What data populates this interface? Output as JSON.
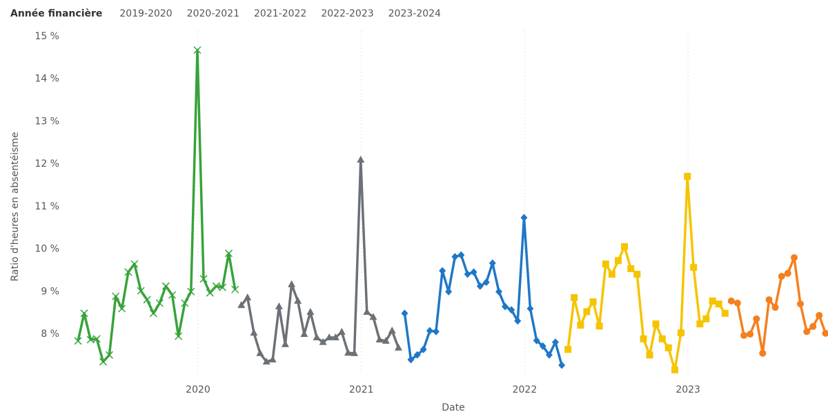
{
  "chart_data": {
    "type": "line",
    "legend_title": "Année financière",
    "x_label": "Date",
    "y_label": "Ratio d'heures en absentéisme",
    "xlim": [
      2019.21,
      2023.857
    ],
    "xticks": [
      2020,
      2021,
      2022,
      2023
    ],
    "ylim": [
      7.11,
      15
    ],
    "yticks": [
      {
        "value": 8,
        "label": "8 %"
      },
      {
        "value": 9,
        "label": "9 %"
      },
      {
        "value": 10,
        "label": "10 %"
      },
      {
        "value": 11,
        "label": "11 %"
      },
      {
        "value": 12,
        "label": "12 %"
      },
      {
        "value": 13,
        "label": "13 %"
      },
      {
        "value": 14,
        "label": "14 %"
      },
      {
        "value": 15,
        "label": "15 %"
      }
    ],
    "grid": "x",
    "legend": "top-left",
    "series": [
      {
        "name": "2019-2020",
        "color": "#37a33a",
        "marker": "x",
        "x": [
          2019.265,
          2019.303,
          2019.342,
          2019.38,
          2019.419,
          2019.457,
          2019.496,
          2019.534,
          2019.573,
          2019.611,
          2019.65,
          2019.688,
          2019.727,
          2019.765,
          2019.803,
          2019.842,
          2019.88,
          2019.919,
          2019.957,
          2019.996,
          2020.034,
          2020.073,
          2020.111,
          2020.15,
          2020.188,
          2020.227
        ],
        "values": [
          7.84,
          8.49,
          7.87,
          7.89,
          7.35,
          7.51,
          8.89,
          8.6,
          9.46,
          9.65,
          9.02,
          8.81,
          8.49,
          8.73,
          9.13,
          8.92,
          7.95,
          8.73,
          9.0,
          14.68,
          9.3,
          8.97,
          9.13,
          9.1,
          9.9,
          9.05
        ]
      },
      {
        "name": "2020-2021",
        "color": "#6b7177",
        "marker": "triangle",
        "x": [
          2020.265,
          2020.303,
          2020.342,
          2020.38,
          2020.419,
          2020.457,
          2020.496,
          2020.534,
          2020.573,
          2020.611,
          2020.65,
          2020.688,
          2020.727,
          2020.765,
          2020.803,
          2020.842,
          2020.88,
          2020.919,
          2020.957,
          2020.996,
          2021.034,
          2021.073,
          2021.111,
          2021.15,
          2021.188,
          2021.227
        ],
        "values": [
          8.68,
          8.86,
          8.03,
          7.55,
          7.35,
          7.4,
          8.65,
          7.76,
          9.17,
          8.78,
          8.0,
          8.52,
          7.92,
          7.81,
          7.92,
          7.92,
          8.05,
          7.56,
          7.55,
          12.1,
          8.52,
          8.4,
          7.87,
          7.84,
          8.08,
          7.68
        ]
      },
      {
        "name": "2021-2022",
        "color": "#1f77c8",
        "marker": "diamond",
        "x": [
          2021.265,
          2021.303,
          2021.342,
          2021.38,
          2021.419,
          2021.457,
          2021.496,
          2021.534,
          2021.573,
          2021.611,
          2021.65,
          2021.688,
          2021.727,
          2021.765,
          2021.803,
          2021.842,
          2021.88,
          2021.919,
          2021.957,
          2021.996,
          2022.034,
          2022.073,
          2022.111,
          2022.15,
          2022.188,
          2022.227
        ],
        "values": [
          8.49,
          7.4,
          7.51,
          7.64,
          8.08,
          8.06,
          9.49,
          9.0,
          9.82,
          9.86,
          9.41,
          9.46,
          9.13,
          9.22,
          9.67,
          9.0,
          8.65,
          8.57,
          8.31,
          10.74,
          8.6,
          7.85,
          7.72,
          7.51,
          7.81,
          7.27
        ]
      },
      {
        "name": "2022-2023",
        "color": "#f5c400",
        "marker": "square",
        "x": [
          2022.265,
          2022.303,
          2022.342,
          2022.38,
          2022.419,
          2022.457,
          2022.496,
          2022.534,
          2022.573,
          2022.611,
          2022.65,
          2022.688,
          2022.727,
          2022.765,
          2022.803,
          2022.842,
          2022.88,
          2022.919,
          2022.957,
          2022.996,
          2023.034,
          2023.073,
          2023.111,
          2023.15,
          2023.188,
          2023.227
        ],
        "values": [
          7.64,
          8.86,
          8.21,
          8.53,
          8.76,
          8.19,
          9.65,
          9.41,
          9.73,
          10.06,
          9.54,
          9.41,
          7.89,
          7.51,
          8.24,
          7.89,
          7.68,
          7.16,
          8.03,
          11.71,
          9.57,
          8.24,
          8.36,
          8.78,
          8.71,
          8.49
        ]
      },
      {
        "name": "2023-2024",
        "color": "#f57f1e",
        "marker": "circle",
        "x": [
          2023.265,
          2023.303,
          2023.342,
          2023.38,
          2023.419,
          2023.457,
          2023.496,
          2023.534,
          2023.573,
          2023.611,
          2023.65,
          2023.688,
          2023.727,
          2023.765,
          2023.803,
          2023.842
        ],
        "values": [
          8.78,
          8.73,
          7.97,
          8.0,
          8.36,
          7.55,
          8.81,
          8.63,
          9.36,
          9.43,
          9.8,
          8.71,
          8.06,
          8.18,
          8.44,
          8.02
        ]
      }
    ]
  }
}
